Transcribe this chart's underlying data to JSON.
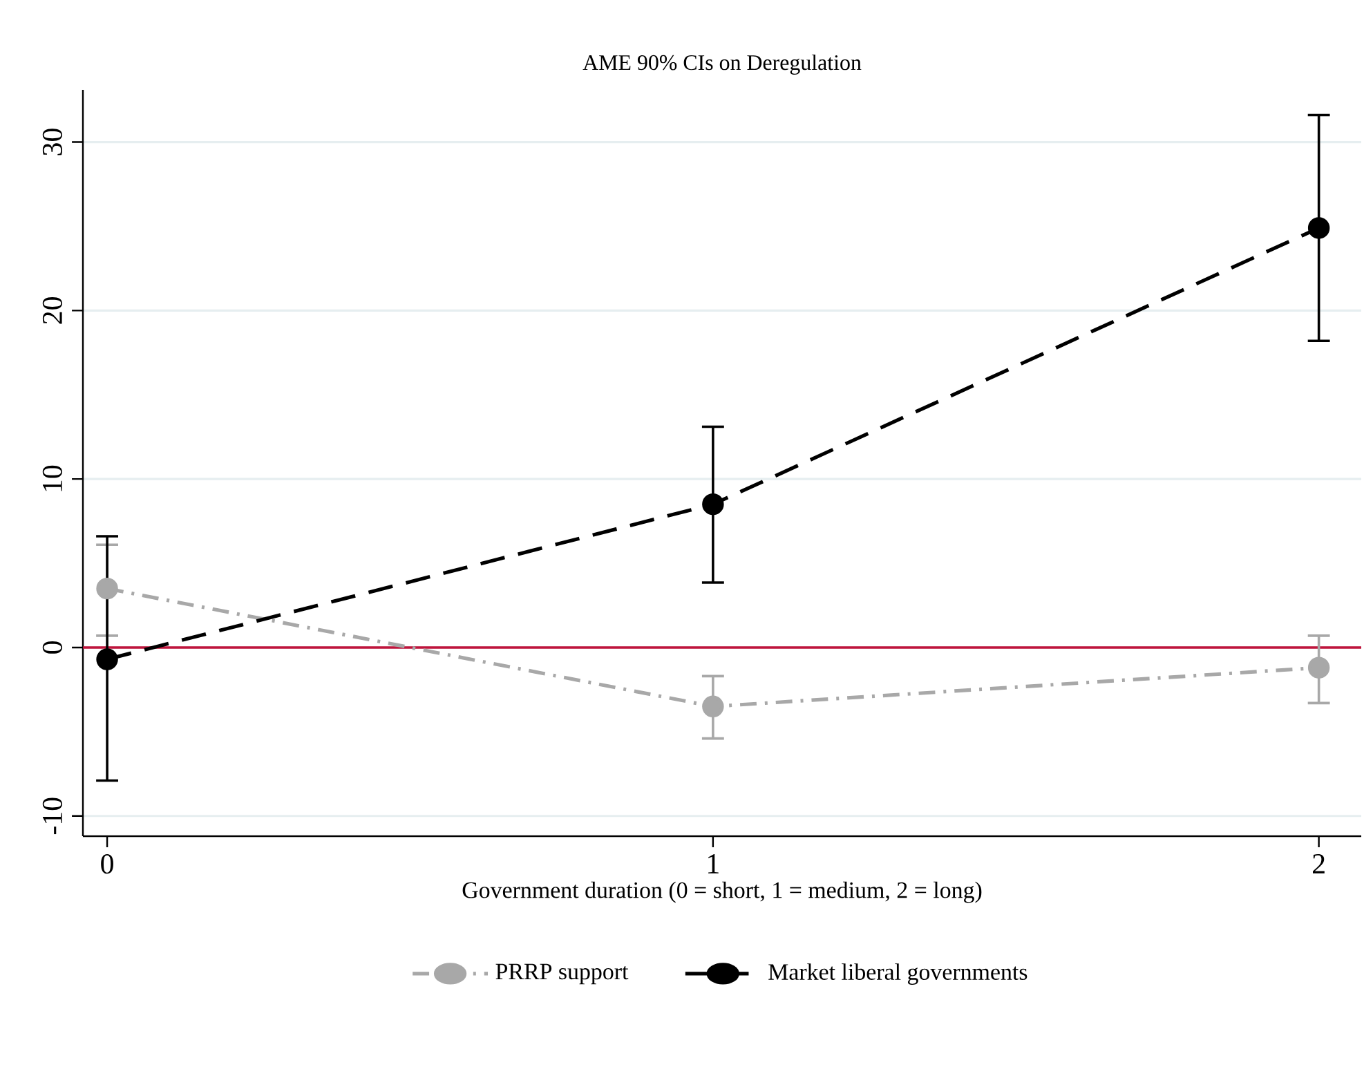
{
  "chart_data": {
    "type": "line",
    "title": "AME 90% CIs on Deregulation",
    "xlabel": "Government duration (0 = short, 1 = medium, 2 = long)",
    "x": [
      0,
      1,
      2
    ],
    "xlim": [
      -0.04,
      2.07
    ],
    "xticks": [
      0,
      1,
      2
    ],
    "ylim": [
      -11.2,
      33.1
    ],
    "yticks": [
      -10,
      0,
      10,
      20,
      30
    ],
    "series": [
      {
        "name": "PRRP support",
        "color": "#a8a8a8",
        "line_style": "dashdot",
        "values": [
          3.5,
          -3.5,
          -1.2
        ],
        "errors": [
          [
            0.7,
            6.1
          ],
          [
            -5.4,
            -1.7
          ],
          [
            -3.3,
            0.7
          ]
        ]
      },
      {
        "name": "Market liberal governments",
        "color": "#000000",
        "line_style": "dashed",
        "values": [
          -0.7,
          8.5,
          24.9
        ],
        "errors": [
          [
            -7.9,
            6.6
          ],
          [
            3.85,
            13.1
          ],
          [
            18.2,
            31.6
          ]
        ]
      }
    ],
    "ref_lines": [
      {
        "axis": "y",
        "value": 0,
        "color": "#c0143c"
      }
    ],
    "grid": "y",
    "legend": "bottom",
    "marker": "circle"
  }
}
